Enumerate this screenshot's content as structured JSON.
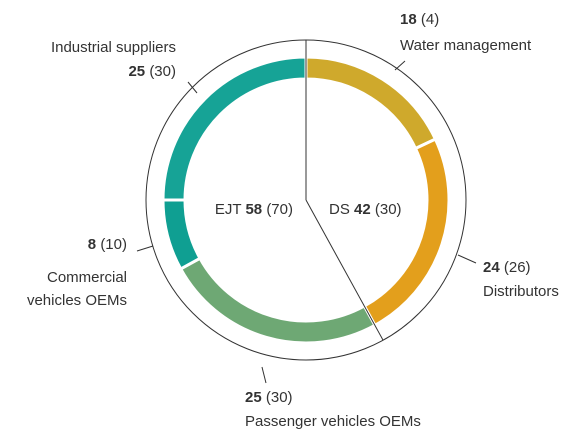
{
  "chart_data": {
    "type": "donut",
    "segments": [
      {
        "label": [
          "Water management"
        ],
        "value": 18,
        "previous_label": "(4)",
        "color": "#cfa92c"
      },
      {
        "label": [
          "Distributors"
        ],
        "value": 24,
        "previous_label": "(26)",
        "color": "#e39f1c"
      },
      {
        "label": [
          "Passenger vehicles OEMs"
        ],
        "value": 25,
        "previous_label": "(30)",
        "color": "#6ea874"
      },
      {
        "label": [
          "Commercial",
          "vehicles OEMs"
        ],
        "value": 8,
        "previous_label": "(10)",
        "color": "#0f9f92"
      },
      {
        "label": [
          "Industrial suppliers"
        ],
        "value": 25,
        "previous_label": "(30)",
        "color": "#16a396"
      }
    ],
    "groups": [
      {
        "name": "DS",
        "value": 42,
        "previous_label": "(30)"
      },
      {
        "name": "EJT",
        "value": 58,
        "previous_label": "(70)"
      }
    ]
  }
}
